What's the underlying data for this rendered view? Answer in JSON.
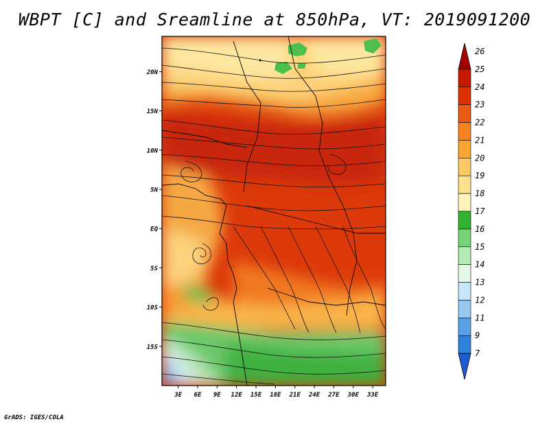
{
  "title": "WBPT [C] and Sreamline at 850hPa, VT: 2019091200",
  "credit": "GrADS: IGES/COLA",
  "map": {
    "lat_labels": [
      {
        "text": "20N",
        "value": 20
      },
      {
        "text": "15N",
        "value": 15
      },
      {
        "text": "10N",
        "value": 10
      },
      {
        "text": "5N",
        "value": 5
      },
      {
        "text": "EQ",
        "value": 0
      },
      {
        "text": "5S",
        "value": -5
      },
      {
        "text": "10S",
        "value": -10
      },
      {
        "text": "15S",
        "value": -15
      }
    ],
    "lon_labels": [
      {
        "text": "3E",
        "value": 3
      },
      {
        "text": "6E",
        "value": 6
      },
      {
        "text": "9E",
        "value": 9
      },
      {
        "text": "12E",
        "value": 12
      },
      {
        "text": "15E",
        "value": 15
      },
      {
        "text": "18E",
        "value": 18
      },
      {
        "text": "21E",
        "value": 21
      },
      {
        "text": "24E",
        "value": 24
      },
      {
        "text": "27E",
        "value": 27
      },
      {
        "text": "30E",
        "value": 30
      },
      {
        "text": "33E",
        "value": 33
      }
    ],
    "lon_range": [
      0.5,
      35
    ],
    "lat_range": [
      -20,
      24.5
    ]
  },
  "colorbar": {
    "labels": [
      "26",
      "25",
      "24",
      "23",
      "22",
      "21",
      "20",
      "19",
      "18",
      "17",
      "16",
      "15",
      "14",
      "13",
      "12",
      "11",
      "9",
      "7"
    ],
    "colors": [
      "#a50000",
      "#c41a00",
      "#dc3200",
      "#ea5a14",
      "#f7821e",
      "#f9a532",
      "#fcc864",
      "#fde18c",
      "#fef5bc",
      "#32b432",
      "#78d278",
      "#b4eab4",
      "#e6f8e6",
      "#c8e6fa",
      "#96c8f0",
      "#5aa0e6",
      "#2d82dc",
      "#1e5ad2"
    ]
  }
}
